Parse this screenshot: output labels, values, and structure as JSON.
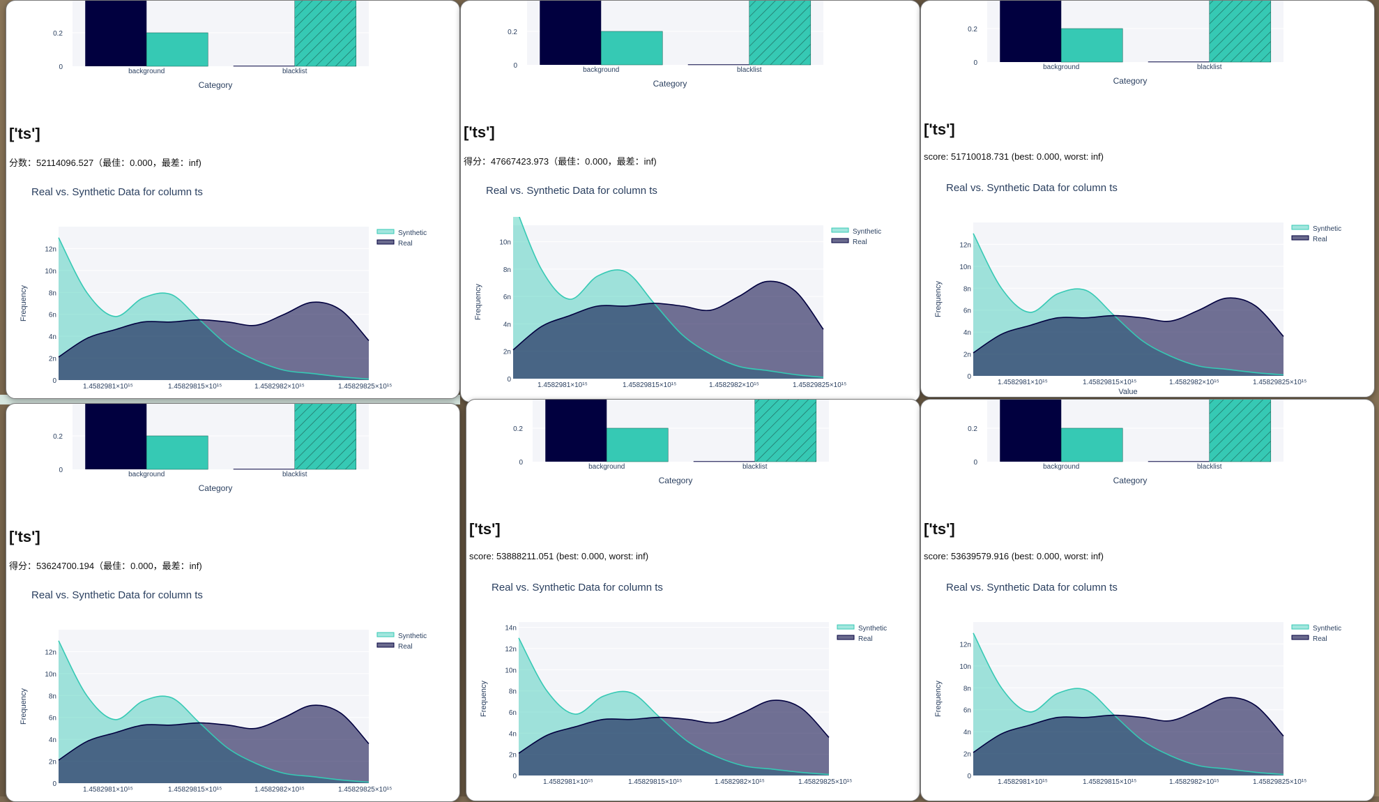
{
  "colors": {
    "real": "#01003f",
    "real_fill": "#6a6a8e",
    "synthetic": "#36c9b4",
    "synthetic_fill": "#a2e6de",
    "overlap_fill": "#6fa8a8",
    "plot_bg": "#f4f5f9",
    "axis_text": "#2a3f5f",
    "page_bg": "#7c6a52"
  },
  "panels": [
    {
      "ts_label": "['ts']",
      "score_text": "分数：52114096.527（最佳：0.000，最差：inf)",
      "chart_title": "Real vs. Synthetic Data for column ts"
    },
    {
      "ts_label": "['ts']",
      "score_text": "得分：47667423.973（最佳：0.000，最差：inf)",
      "chart_title": "Real vs. Synthetic Data for column ts"
    },
    {
      "ts_label": "['ts']",
      "score_text": "score: 51710018.731 (best: 0.000, worst: inf)",
      "chart_title": "Real vs. Synthetic Data for column ts"
    },
    {
      "ts_label": "['ts']",
      "score_text": "得分：53624700.194（最佳：0.000，最差：inf)",
      "chart_title": "Real vs. Synthetic Data for column ts"
    },
    {
      "ts_label": "['ts']",
      "score_text": "score: 53888211.051 (best: 0.000, worst: inf)",
      "chart_title": "Real vs. Synthetic Data for column ts"
    },
    {
      "ts_label": "['ts']",
      "score_text": "score: 53639579.916 (best: 0.000, worst: inf)",
      "chart_title": "Real vs. Synthetic Data for column ts"
    }
  ],
  "chart_data": [
    {
      "type": "bar",
      "title": "",
      "xlabel": "Category",
      "ylabel": "",
      "categories": [
        "background",
        "blacklist"
      ],
      "y_ticks": [
        "0",
        "0.2"
      ],
      "series": [],
      "note_values": {
        "real": [
          0.52,
          0.003
        ],
        "synthetic": [
          0.2,
          0.52
        ]
      }
    },
    {
      "type": "area",
      "title": "Real vs. Synthetic Data for column ts",
      "ylabel": "Frequency",
      "xlabel": "",
      "x_ticks": [
        "1.4582981×10¹⁵",
        "1.45829815×10¹⁵",
        "1.4582982×10¹⁵",
        "1.45829825×10¹⁵"
      ],
      "y_ticks": [
        "0",
        "2n",
        "4n",
        "6n",
        "8n",
        "10n",
        "12n"
      ],
      "series": [
        {
          "name": "Synthetic"
        },
        {
          "name": "Real"
        }
      ],
      "legend": "top-right"
    }
  ],
  "bar": {
    "categories": [
      "background",
      "blacklist"
    ],
    "xlabel": "Category",
    "y_ticks": [
      "0",
      "0.2"
    ],
    "real_values": [
      0.52,
      0.003
    ],
    "synthetic_values": [
      0.2,
      0.52
    ]
  },
  "density": {
    "legend": [
      "Synthetic",
      "Real"
    ],
    "ylabel": "Frequency",
    "x_ticks": [
      "1.4582981×10¹⁵",
      "1.45829815×10¹⁵",
      "1.4582982×10¹⁵",
      "1.45829825×10¹⁵"
    ],
    "y_ticks_a": [
      "0",
      "2n",
      "4n",
      "6n",
      "8n",
      "10n",
      "12n"
    ],
    "y_ticks_b": [
      "0",
      "2n",
      "4n",
      "6n",
      "8n",
      "10n"
    ],
    "y_ticks_c": [
      "0",
      "2n",
      "4n",
      "6n",
      "8n",
      "10n",
      "12n",
      "14n"
    ],
    "xlabel_partial": "Value",
    "real_values": [
      2.1,
      3.8,
      4.6,
      5.3,
      5.3,
      5.5,
      5.3,
      5.0,
      6.0,
      7.1,
      6.4,
      3.6
    ],
    "synthetic_values": [
      13.0,
      8.0,
      5.8,
      7.5,
      7.8,
      5.5,
      3.2,
      1.8,
      0.9,
      0.6,
      0.3,
      0.1
    ]
  }
}
